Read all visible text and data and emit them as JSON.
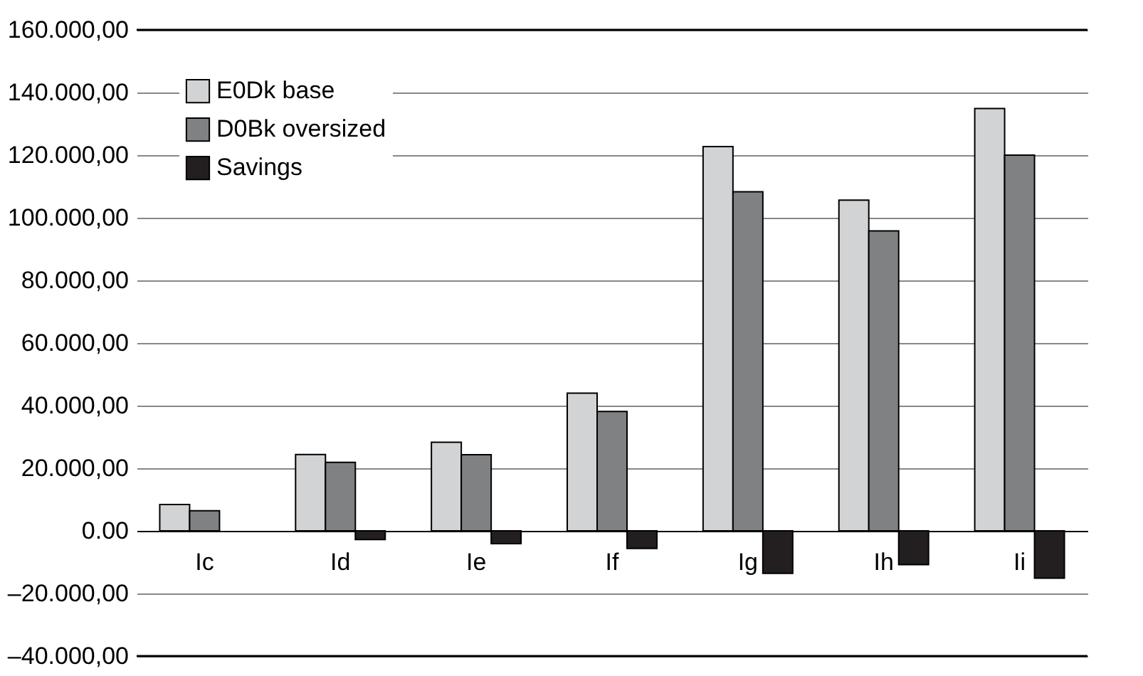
{
  "chart_data": {
    "type": "bar",
    "categories": [
      "Ic",
      "Id",
      "Ie",
      "If",
      "Ig",
      "Ih",
      "Ii"
    ],
    "series": [
      {
        "name": "E0Dk base",
        "color": "#d1d3d4",
        "values": [
          8400,
          24400,
          28300,
          44000,
          122700,
          105600,
          134900
        ]
      },
      {
        "name": "D0Bk oversized",
        "color": "#808183",
        "values": [
          6400,
          21900,
          24300,
          38100,
          108300,
          95800,
          120000
        ]
      },
      {
        "name": "Savings",
        "color": "#231f20",
        "values": [
          null,
          -2800,
          -4100,
          -5600,
          -13600,
          -10800,
          -15100
        ]
      }
    ],
    "ylim": [
      -40000,
      160000
    ],
    "yticks": [
      {
        "value": -40000,
        "label": "–40.000,00"
      },
      {
        "value": -20000,
        "label": "–20.000,00"
      },
      {
        "value": 0,
        "label": "0.00"
      },
      {
        "value": 20000,
        "label": "20.000,00"
      },
      {
        "value": 40000,
        "label": "40.000,00"
      },
      {
        "value": 60000,
        "label": "60.000,00"
      },
      {
        "value": 80000,
        "label": "80.000,00"
      },
      {
        "value": 100000,
        "label": "100.000,00"
      },
      {
        "value": 120000,
        "label": "120.000,00"
      },
      {
        "value": 140000,
        "label": "140.000,00"
      },
      {
        "value": 160000,
        "label": "160.000,00"
      }
    ],
    "grid": "y",
    "legend": "top left"
  }
}
